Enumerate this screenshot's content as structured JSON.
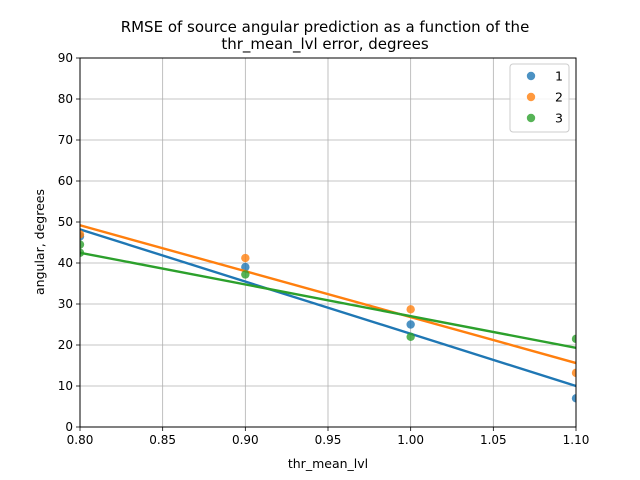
{
  "chart_data": {
    "type": "scatter",
    "title_lines": [
      "RMSE of source angular prediction as a function of the",
      "thr_mean_lvl error, degrees"
    ],
    "xlabel": "thr_mean_lvl",
    "ylabel": "angular, degrees",
    "xlim": [
      0.8,
      1.1
    ],
    "ylim": [
      0,
      90
    ],
    "xticks": [
      0.8,
      0.85,
      0.9,
      0.95,
      1.0,
      1.05,
      1.1
    ],
    "xtick_labels": [
      "0.80",
      "0.85",
      "0.90",
      "0.95",
      "1.00",
      "1.05",
      "1.10"
    ],
    "yticks": [
      0,
      10,
      20,
      30,
      40,
      50,
      60,
      70,
      80,
      90
    ],
    "ytick_labels": [
      "0",
      "10",
      "20",
      "30",
      "40",
      "50",
      "60",
      "70",
      "80",
      "90"
    ],
    "grid": true,
    "legend_position": "top-right",
    "series": [
      {
        "name": "1",
        "color": "#1f77b4",
        "points": [
          [
            0.8,
            46.5
          ],
          [
            0.9,
            39.0
          ],
          [
            1.0,
            25.0
          ],
          [
            1.1,
            7.0
          ]
        ],
        "fit": [
          [
            0.8,
            48.2
          ],
          [
            1.1,
            10.0
          ]
        ]
      },
      {
        "name": "2",
        "color": "#ff7f0e",
        "points": [
          [
            0.8,
            47.0
          ],
          [
            0.9,
            41.2
          ],
          [
            1.0,
            28.7
          ],
          [
            1.1,
            13.2
          ]
        ],
        "fit": [
          [
            0.8,
            49.2
          ],
          [
            1.1,
            15.6
          ]
        ]
      },
      {
        "name": "3",
        "color": "#2ca02c",
        "points": [
          [
            0.8,
            44.5
          ],
          [
            0.8,
            42.5
          ],
          [
            0.9,
            37.2
          ],
          [
            1.0,
            22.0
          ],
          [
            1.1,
            21.5
          ]
        ],
        "fit": [
          [
            0.8,
            42.5
          ],
          [
            1.1,
            19.3
          ]
        ]
      }
    ]
  }
}
